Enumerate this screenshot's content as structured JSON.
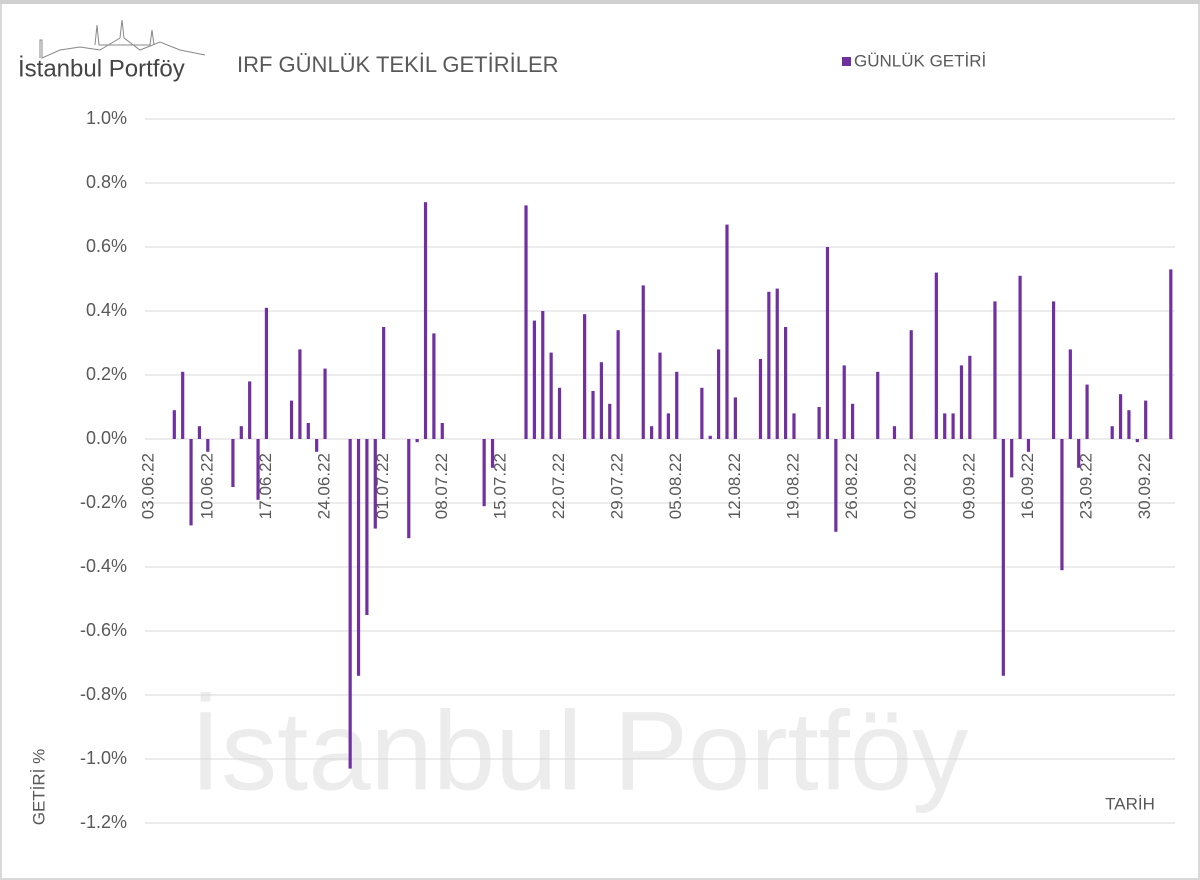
{
  "logo": "İstanbul Portföy",
  "chart_data": {
    "type": "bar",
    "title": "IRF GÜNLÜK TEKİL GETİRİLER",
    "y_label": "GETİRİ %",
    "x_label": "TARİH",
    "categories": [
      "03.06.22",
      null,
      null,
      null,
      null,
      null,
      null,
      "10.06.22",
      null,
      null,
      null,
      null,
      null,
      null,
      "17.06.22",
      null,
      null,
      null,
      null,
      null,
      null,
      "24.06.22",
      null,
      null,
      null,
      null,
      null,
      null,
      "01.07.22",
      null,
      null,
      null,
      null,
      null,
      null,
      "08.07.22",
      null,
      null,
      null,
      null,
      null,
      null,
      "15.07.22",
      null,
      null,
      null,
      null,
      null,
      null,
      "22.07.22",
      null,
      null,
      null,
      null,
      null,
      null,
      "29.07.22",
      null,
      null,
      null,
      null,
      null,
      null,
      "05.08.22",
      null,
      null,
      null,
      null,
      null,
      null,
      "12.08.22",
      null,
      null,
      null,
      null,
      null,
      null,
      "19.08.22",
      null,
      null,
      null,
      null,
      null,
      null,
      "26.08.22",
      null,
      null,
      null,
      null,
      null,
      null,
      "02.09.22",
      null,
      null,
      null,
      null,
      null,
      null,
      "09.09.22",
      null,
      null,
      null,
      null,
      null,
      null,
      "16.09.22",
      null,
      null,
      null,
      null,
      null,
      null,
      "23.09.22",
      null,
      null,
      null,
      null,
      null,
      null,
      "30.09.22",
      null,
      null,
      null
    ],
    "series": [
      {
        "name": "GÜNLÜK GETİRİ",
        "color": "#7030a0",
        "values": [
          null,
          null,
          null,
          0.09,
          0.21,
          -0.27,
          0.04,
          -0.04,
          null,
          null,
          -0.15,
          0.04,
          0.18,
          -0.19,
          0.41,
          null,
          null,
          0.12,
          0.28,
          0.05,
          -0.04,
          0.22,
          null,
          null,
          -1.03,
          -0.74,
          -0.55,
          -0.28,
          0.35,
          null,
          null,
          -0.31,
          -0.01,
          0.74,
          0.33,
          0.05,
          null,
          null,
          null,
          null,
          -0.21,
          -0.09,
          null,
          null,
          null,
          0.73,
          0.37,
          0.4,
          0.27,
          0.16,
          null,
          null,
          0.39,
          0.15,
          0.24,
          0.11,
          0.34,
          null,
          null,
          0.48,
          0.04,
          0.27,
          0.08,
          0.21,
          null,
          null,
          0.16,
          0.01,
          0.28,
          0.67,
          0.13,
          null,
          null,
          0.25,
          0.46,
          0.47,
          0.35,
          0.08,
          null,
          null,
          0.1,
          0.6,
          -0.29,
          0.23,
          0.11,
          null,
          null,
          0.21,
          null,
          0.04,
          null,
          0.34,
          null,
          null,
          0.52,
          0.08,
          0.08,
          0.23,
          0.26,
          null,
          null,
          0.43,
          -0.74,
          -0.12,
          0.51,
          -0.04,
          null,
          null,
          0.43,
          -0.41,
          0.28,
          -0.09,
          0.17,
          null,
          null,
          0.04,
          0.14,
          0.09,
          -0.01,
          0.12,
          null,
          null,
          0.53
        ]
      }
    ],
    "ylim": [
      -1.2,
      1.0
    ],
    "yticks": [
      {
        "value": -1.2,
        "label": "-1.2%"
      },
      {
        "value": -1.0,
        "label": "-1.0%"
      },
      {
        "value": -0.8,
        "label": "-0.8%"
      },
      {
        "value": -0.6,
        "label": "-0.6%"
      },
      {
        "value": -0.4,
        "label": "-0.4%"
      },
      {
        "value": -0.2,
        "label": "-0.2%"
      },
      {
        "value": 0,
        "label": "0.0%"
      },
      {
        "value": 0.2,
        "label": "0.2%"
      },
      {
        "value": 0.4,
        "label": "0.4%"
      },
      {
        "value": 0.6,
        "label": "0.6%"
      },
      {
        "value": 0.8,
        "label": "0.8%"
      },
      {
        "value": 1.0,
        "label": "1.0%"
      }
    ],
    "grid": true,
    "legend": "top-right"
  }
}
